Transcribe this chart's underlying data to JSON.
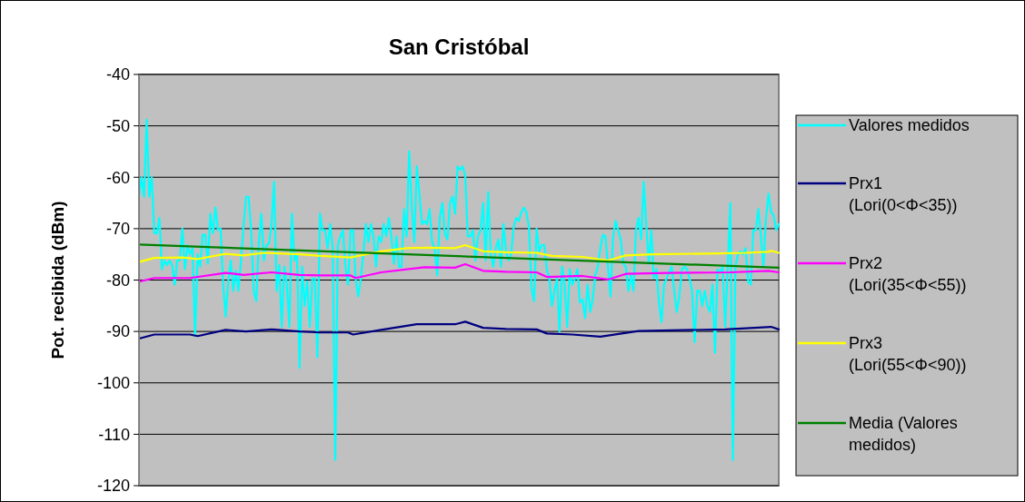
{
  "chart_data": {
    "type": "line",
    "title": "San Cristóbal",
    "ylabel": "Pot. recibida (dBm)",
    "ylim": [
      -120,
      -40
    ],
    "yticks": [
      -120,
      -110,
      -100,
      -90,
      -80,
      -70,
      -60,
      -50,
      -40
    ],
    "tick_labels": "y",
    "grid": "y",
    "legend": "right",
    "marker": "none",
    "line_style": "solid",
    "categories": [
      null,
      null,
      null,
      null,
      null,
      null,
      null,
      null,
      null,
      null,
      null,
      null,
      null,
      null,
      null,
      null,
      null,
      null,
      null,
      null,
      null,
      null,
      null,
      null,
      null,
      null,
      null,
      null,
      null,
      null,
      null,
      null,
      null,
      null,
      null,
      null,
      null,
      null,
      null,
      null,
      null,
      null,
      null,
      null,
      null,
      null,
      null,
      null,
      null,
      null,
      null,
      null,
      null,
      null,
      null,
      null,
      null,
      null,
      null,
      null,
      null,
      null,
      null,
      null,
      null,
      null,
      null,
      null,
      null,
      null,
      null,
      null,
      null,
      null,
      null,
      null,
      null,
      null,
      null,
      null,
      null,
      null,
      null,
      null,
      null,
      null,
      null,
      null,
      null,
      null,
      null,
      null,
      null,
      null,
      null,
      null,
      null,
      null,
      null,
      null,
      null,
      null,
      null,
      null,
      null,
      null,
      null,
      null,
      null,
      null,
      null,
      null,
      null,
      null,
      null,
      null,
      null,
      null,
      null,
      null,
      null,
      null,
      null,
      null,
      null,
      null,
      null,
      null,
      null,
      null,
      null,
      null,
      null,
      null,
      null,
      null,
      null,
      null,
      null,
      null,
      null,
      null,
      null,
      null,
      null,
      null,
      null,
      null,
      null,
      null,
      null,
      null,
      null,
      null,
      null,
      null,
      null,
      null,
      null,
      null,
      null,
      null,
      null,
      null,
      null,
      null,
      null,
      null,
      null,
      null,
      null,
      null,
      null,
      null,
      null,
      null,
      null,
      null,
      null,
      null,
      null,
      null,
      null,
      null,
      null,
      null,
      null,
      null,
      null,
      null,
      null,
      null,
      null,
      null,
      null,
      null,
      null,
      null,
      null,
      null,
      null,
      null,
      null,
      null,
      null,
      null,
      null,
      null,
      null,
      null,
      null,
      null,
      null,
      null,
      null,
      null,
      null,
      null,
      null,
      null,
      null,
      null,
      null,
      null,
      null,
      null,
      null,
      null,
      null,
      null,
      null,
      null,
      null,
      null,
      null,
      null,
      null,
      null,
      null,
      null,
      null,
      null,
      null,
      null,
      null,
      null,
      null,
      null,
      null,
      null,
      null,
      null
    ],
    "series": [
      {
        "name": "Valores medidos",
        "color": "#00ffff",
        "values": [
          -63.8,
          -60,
          -63.8,
          -48.8,
          -63.8,
          -60,
          -70.9,
          -70.9,
          -67.9,
          -77.9,
          -76.2,
          -77.1,
          -76.2,
          -77.1,
          -80.9,
          -76.2,
          -76.2,
          -70,
          -77.9,
          -73.2,
          -75,
          -73.8,
          -90.9,
          -75,
          -77.4,
          -71.2,
          -71.2,
          -76.8,
          -67.1,
          -70.9,
          -65.9,
          -70.3,
          -70,
          -80.9,
          -87.1,
          -80.3,
          -76.2,
          -82.1,
          -78.2,
          -82.1,
          -76.2,
          -69.7,
          -63.8,
          -63.8,
          -70.3,
          -82.1,
          -84.1,
          -72.6,
          -67.1,
          -76.2,
          -73.2,
          -72.9,
          -69.1,
          -60.9,
          -82.1,
          -77.1,
          -89.1,
          -77.4,
          -80.9,
          -89.1,
          -67.1,
          -76.2,
          -75,
          -97.1,
          -77.4,
          -85,
          -80.3,
          -89.1,
          -79.7,
          -79.7,
          -95,
          -67.1,
          -70.3,
          -70.3,
          -73.8,
          -69.1,
          -73.8,
          -115,
          -73.2,
          -71.5,
          -70.3,
          -77.4,
          -80.9,
          -70.3,
          -70.3,
          -79.7,
          -83.2,
          -79.7,
          -75,
          -69.1,
          -72.6,
          -69.1,
          -71.5,
          -77.4,
          -71.5,
          -72.6,
          -69.1,
          -71.5,
          -67.9,
          -71.5,
          -76.8,
          -71.5,
          -77.4,
          -77.4,
          -66.2,
          -71.5,
          -55,
          -65.6,
          -72.6,
          -57.9,
          -63.2,
          -69.1,
          -68.5,
          -69.1,
          -66.2,
          -72.6,
          -73.8,
          -79.1,
          -67.9,
          -65,
          -70.9,
          -72.1,
          -65,
          -63.8,
          -67.1,
          -57.9,
          -58.5,
          -57.9,
          -59.7,
          -71.5,
          -71.5,
          -70.3,
          -76.2,
          -71.5,
          -70.3,
          -65,
          -76.2,
          -62.9,
          -75,
          -77.4,
          -73.8,
          -72.1,
          -77.4,
          -69.1,
          -74.4,
          -76.2,
          -75,
          -69.7,
          -67.9,
          -68.5,
          -66.8,
          -65.9,
          -66.8,
          -69.7,
          -81.5,
          -84.1,
          -70,
          -74.4,
          -73.2,
          -73.2,
          -77.9,
          -79.7,
          -85,
          -82.1,
          -79.7,
          -90,
          -77.4,
          -80.9,
          -89.1,
          -77.9,
          -80.9,
          -79.7,
          -77.9,
          -84.4,
          -83.8,
          -87.4,
          -80.9,
          -86.2,
          -83.8,
          -79.1,
          -77.4,
          -73.8,
          -71.2,
          -71.5,
          -77.4,
          -83.2,
          -71.5,
          -68.5,
          -70.3,
          -72.1,
          -76.8,
          -77.4,
          -82.1,
          -79.1,
          -82.1,
          -70.3,
          -67.9,
          -72.1,
          -60.9,
          -69.1,
          -76.8,
          -70.3,
          -79.7,
          -77.9,
          -84.4,
          -88.2,
          -80.9,
          -79.7,
          -78.5,
          -77.4,
          -82.1,
          -86.2,
          -83.2,
          -77.9,
          -77.4,
          -77.9,
          -79.7,
          -82.1,
          -92.1,
          -82.1,
          -82.1,
          -85,
          -82.1,
          -85,
          -86.2,
          -80.9,
          -94.1,
          -77.9,
          -78.5,
          -77.4,
          -89.1,
          -77.4,
          -65,
          -115,
          -77.4,
          -75,
          -74.4,
          -75,
          -73.8,
          -80.3,
          -80.9,
          -70.3,
          -70.3,
          -66.2,
          -71.5,
          -77.4,
          -67.9,
          -63.2,
          -66.8,
          -67.4,
          -70.3,
          -69.1
        ]
      },
      {
        "name": "Prx1 (Lori(0<Φ<35))",
        "color": "#000080",
        "values": [
          -91.4,
          null,
          null,
          null,
          null,
          null,
          -90.6,
          null,
          null,
          null,
          null,
          null,
          null,
          null,
          null,
          null,
          null,
          null,
          null,
          null,
          -90.6,
          null,
          null,
          -90.9,
          null,
          null,
          null,
          null,
          null,
          null,
          null,
          null,
          null,
          null,
          -89.7,
          null,
          null,
          null,
          null,
          null,
          null,
          null,
          -90,
          null,
          null,
          null,
          null,
          null,
          null,
          null,
          null,
          null,
          -89.6,
          null,
          null,
          null,
          null,
          null,
          null,
          null,
          null,
          null,
          null,
          -90,
          null,
          null,
          null,
          null,
          null,
          null,
          null,
          -90.2,
          null,
          null,
          null,
          null,
          null,
          null,
          null,
          null,
          null,
          null,
          -90.2,
          null,
          -90.6,
          null,
          null,
          null,
          null,
          null,
          null,
          null,
          null,
          null,
          null,
          -89.7,
          null,
          null,
          null,
          null,
          null,
          null,
          null,
          null,
          null,
          null,
          null,
          null,
          null,
          -88.6,
          null,
          null,
          null,
          null,
          null,
          null,
          null,
          null,
          null,
          null,
          null,
          null,
          null,
          null,
          -88.6,
          null,
          null,
          null,
          -88.1,
          null,
          null,
          null,
          null,
          null,
          null,
          -89.3,
          null,
          null,
          null,
          null,
          null,
          null,
          null,
          null,
          -89.5,
          null,
          null,
          null,
          null,
          null,
          null,
          null,
          null,
          null,
          null,
          null,
          -89.6,
          null,
          null,
          null,
          -90.4,
          null,
          null,
          null,
          null,
          null,
          null,
          null,
          null,
          null,
          -90.6,
          null,
          null,
          null,
          null,
          null,
          null,
          null,
          null,
          null,
          null,
          -91,
          null,
          null,
          null,
          null,
          null,
          null,
          null,
          null,
          null,
          null,
          null,
          null,
          null,
          null,
          -89.9,
          null,
          null,
          null,
          null,
          null,
          null,
          null,
          null,
          null,
          null,
          null,
          null,
          null,
          null,
          null,
          null,
          null,
          null,
          null,
          null,
          null,
          null,
          null,
          null,
          null,
          null,
          null,
          null,
          null,
          null,
          null,
          null,
          null,
          -89.6,
          null,
          null,
          null,
          null,
          null,
          null,
          null,
          null,
          null,
          null,
          null,
          null,
          null,
          null,
          null,
          null,
          null,
          -89.1,
          null,
          null,
          -89.6
        ]
      },
      {
        "name": "Prx2 (Lori(35<Φ<55))",
        "color": "#ff00ff",
        "values": [
          -80.3,
          null,
          null,
          null,
          null,
          null,
          -79.6,
          null,
          null,
          null,
          null,
          null,
          null,
          null,
          null,
          null,
          null,
          null,
          null,
          null,
          -79.6,
          null,
          null,
          null,
          null,
          null,
          null,
          null,
          null,
          null,
          null,
          null,
          null,
          null,
          -78.6,
          null,
          null,
          null,
          null,
          null,
          null,
          -79,
          null,
          null,
          null,
          null,
          null,
          null,
          null,
          null,
          null,
          null,
          -78.5,
          null,
          null,
          null,
          null,
          null,
          null,
          null,
          null,
          null,
          null,
          -79,
          null,
          null,
          null,
          null,
          null,
          null,
          null,
          -79.1,
          null,
          null,
          null,
          null,
          null,
          null,
          null,
          null,
          null,
          null,
          null,
          -79.1,
          null,
          -79.6,
          null,
          null,
          null,
          null,
          null,
          null,
          null,
          null,
          null,
          -78.5,
          null,
          null,
          null,
          null,
          null,
          null,
          null,
          null,
          null,
          null,
          null,
          null,
          null,
          null,
          null,
          null,
          -77.5,
          null,
          null,
          null,
          null,
          null,
          null,
          null,
          null,
          null,
          null,
          null,
          -77.6,
          null,
          null,
          null,
          -76.9,
          null,
          null,
          null,
          null,
          null,
          null,
          -78.2,
          null,
          null,
          null,
          null,
          null,
          null,
          null,
          null,
          -78.4,
          null,
          null,
          null,
          null,
          null,
          null,
          null,
          null,
          null,
          null,
          null,
          -78.5,
          null,
          null,
          null,
          -79.4,
          null,
          null,
          null,
          null,
          null,
          null,
          null,
          null,
          null,
          null,
          null,
          null,
          null,
          -79.2,
          null,
          null,
          null,
          null,
          null,
          null,
          null,
          null,
          null,
          -79.9,
          null,
          null,
          null,
          null,
          null,
          null,
          -78.8,
          null,
          null,
          null,
          null,
          null,
          null,
          null,
          null,
          null,
          null,
          null,
          null,
          null,
          null,
          null,
          null,
          -78.6,
          null,
          null,
          null,
          null,
          null,
          null,
          null,
          null,
          null,
          null,
          null,
          null,
          null,
          null,
          null,
          null,
          null,
          null,
          null,
          null,
          null,
          null,
          null,
          -78.5,
          null,
          null,
          null,
          null,
          null,
          null,
          null,
          null,
          null,
          null,
          null,
          null,
          null,
          null,
          -78.2,
          null,
          null,
          null,
          -78.5
        ]
      },
      {
        "name": "Prx3 (Lori(55<Φ<90))",
        "color": "#ffff00",
        "values": [
          -76.5,
          null,
          null,
          null,
          null,
          null,
          -75.7,
          null,
          null,
          null,
          null,
          null,
          null,
          null,
          null,
          null,
          null,
          -75.6,
          null,
          null,
          null,
          null,
          null,
          -75.9,
          null,
          null,
          null,
          null,
          null,
          null,
          null,
          null,
          null,
          null,
          -74.9,
          null,
          null,
          null,
          null,
          null,
          null,
          -75.2,
          null,
          null,
          null,
          null,
          null,
          null,
          null,
          -74.7,
          null,
          null,
          null,
          null,
          null,
          null,
          null,
          null,
          null,
          null,
          null,
          null,
          null,
          -75,
          null,
          null,
          null,
          null,
          null,
          null,
          null,
          -75.3,
          null,
          null,
          null,
          null,
          null,
          null,
          null,
          null,
          null,
          null,
          null,
          -75.6,
          null,
          null,
          null,
          null,
          null,
          null,
          null,
          null,
          null,
          null,
          null,
          -74.4,
          null,
          null,
          null,
          null,
          null,
          null,
          null,
          null,
          null,
          -73.8,
          null,
          null,
          null,
          null,
          null,
          null,
          null,
          -73.7,
          null,
          null,
          null,
          null,
          null,
          null,
          null,
          null,
          null,
          null,
          -73.8,
          null,
          null,
          null,
          -73.2,
          null,
          null,
          null,
          null,
          null,
          null,
          -74.4,
          null,
          null,
          null,
          null,
          null,
          null,
          null,
          null,
          -74.6,
          null,
          null,
          null,
          null,
          null,
          null,
          null,
          null,
          null,
          null,
          null,
          -74.7,
          null,
          null,
          null,
          null,
          null,
          -75.3,
          null,
          null,
          null,
          null,
          null,
          null,
          null,
          null,
          null,
          null,
          null,
          -75.5,
          null,
          null,
          null,
          null,
          null,
          null,
          null,
          null,
          null,
          -76.2,
          null,
          null,
          null,
          null,
          null,
          null,
          -75.2,
          null,
          null,
          null,
          null,
          null,
          null,
          null,
          null,
          null,
          null,
          -75,
          null,
          null,
          null,
          null,
          null,
          null,
          null,
          null,
          null,
          null,
          null,
          null,
          null,
          null,
          null,
          null,
          null,
          null,
          null,
          null,
          null,
          null,
          null,
          null,
          null,
          -74.8,
          null,
          null,
          null,
          null,
          null,
          null,
          null,
          null,
          null,
          -74.7,
          null,
          null,
          null,
          null,
          null,
          null,
          null,
          null,
          -74.5,
          -74.3,
          null,
          null,
          -74.7
        ]
      },
      {
        "name": "Media (Valores medidos)",
        "color": "#008000",
        "values": [
          -73.1,
          null,
          null,
          null,
          null,
          null,
          null,
          null,
          null,
          null,
          null,
          null,
          null,
          null,
          null,
          null,
          null,
          null,
          null,
          null,
          null,
          null,
          null,
          null,
          null,
          null,
          null,
          null,
          null,
          null,
          null,
          null,
          null,
          null,
          null,
          null,
          null,
          null,
          null,
          null,
          null,
          null,
          null,
          null,
          null,
          null,
          null,
          null,
          null,
          null,
          null,
          null,
          null,
          null,
          null,
          null,
          null,
          null,
          null,
          null,
          null,
          null,
          null,
          null,
          null,
          null,
          null,
          null,
          null,
          null,
          null,
          null,
          null,
          null,
          null,
          null,
          null,
          null,
          null,
          null,
          null,
          null,
          null,
          null,
          null,
          null,
          null,
          null,
          null,
          null,
          null,
          null,
          null,
          null,
          null,
          null,
          null,
          null,
          null,
          null,
          null,
          null,
          null,
          null,
          null,
          null,
          null,
          null,
          null,
          null,
          null,
          null,
          null,
          null,
          null,
          null,
          null,
          null,
          null,
          null,
          null,
          null,
          null,
          null,
          null,
          null,
          null,
          null,
          null,
          null,
          null,
          null,
          null,
          null,
          null,
          null,
          null,
          null,
          null,
          null,
          null,
          null,
          null,
          null,
          null,
          null,
          null,
          null,
          null,
          null,
          null,
          null,
          null,
          null,
          null,
          null,
          null,
          null,
          null,
          null,
          null,
          null,
          null,
          null,
          null,
          null,
          null,
          null,
          null,
          null,
          null,
          null,
          null,
          null,
          null,
          null,
          null,
          null,
          null,
          null,
          null,
          null,
          null,
          null,
          null,
          null,
          null,
          null,
          null,
          null,
          null,
          null,
          null,
          null,
          null,
          null,
          null,
          null,
          null,
          null,
          null,
          null,
          null,
          null,
          null,
          null,
          null,
          null,
          null,
          null,
          null,
          null,
          null,
          null,
          null,
          null,
          null,
          null,
          null,
          null,
          null,
          null,
          null,
          null,
          null,
          null,
          null,
          null,
          null,
          null,
          null,
          null,
          null,
          null,
          null,
          null,
          null,
          null,
          null,
          null,
          null,
          null,
          null,
          null,
          null,
          null,
          null,
          null,
          null,
          null,
          null,
          -77.6
        ]
      }
    ]
  }
}
